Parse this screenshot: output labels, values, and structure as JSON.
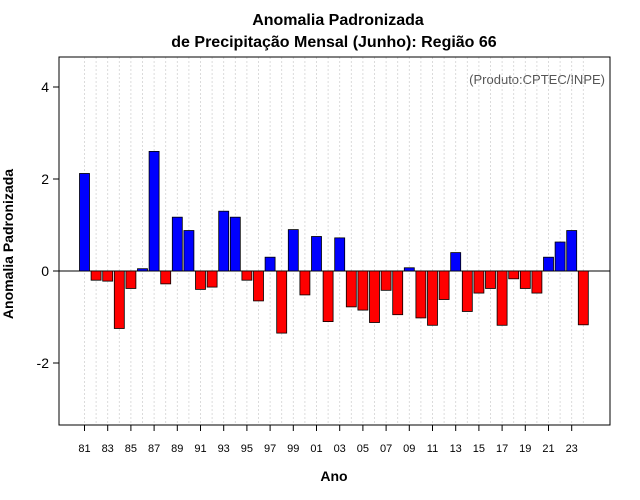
{
  "chart_data": {
    "type": "bar",
    "title": "Anomalia Padronizada",
    "subtitle": "de Precipitação Mensal (Junho): Região 66",
    "xlabel": "Ano",
    "ylabel": "Anomalia Padronizada",
    "credit": "(Produto:CPTEC/INPE)",
    "ylim": [
      -3.4,
      4.6
    ],
    "yticks": [
      "4",
      "2",
      "0",
      "-2"
    ],
    "ytick_values": [
      4,
      2,
      0,
      -2
    ],
    "xtick_labels": [
      "81",
      "83",
      "85",
      "87",
      "89",
      "91",
      "93",
      "95",
      "97",
      "99",
      "01",
      "03",
      "05",
      "07",
      "09",
      "11",
      "13",
      "15",
      "17",
      "19",
      "21",
      "23"
    ],
    "categories": [
      "1981",
      "1982",
      "1983",
      "1984",
      "1985",
      "1986",
      "1987",
      "1988",
      "1989",
      "1990",
      "1991",
      "1992",
      "1993",
      "1994",
      "1995",
      "1996",
      "1997",
      "1998",
      "1999",
      "2000",
      "2001",
      "2002",
      "2003",
      "2004",
      "2005",
      "2006",
      "2007",
      "2008",
      "2009",
      "2010",
      "2011",
      "2012",
      "2013",
      "2014",
      "2015",
      "2016",
      "2017",
      "2018",
      "2019",
      "2020",
      "2021",
      "2022",
      "2023",
      "2024"
    ],
    "values": [
      2.12,
      -0.2,
      -0.22,
      -1.25,
      -0.38,
      0.05,
      2.6,
      -0.28,
      1.17,
      0.88,
      -0.4,
      -0.35,
      1.3,
      1.17,
      -0.2,
      -0.65,
      0.3,
      -1.35,
      0.9,
      -0.52,
      0.75,
      -1.1,
      0.72,
      -0.78,
      -0.85,
      -1.12,
      -0.42,
      -0.95,
      0.07,
      -1.02,
      -1.18,
      -0.62,
      0.4,
      -0.88,
      -0.48,
      -0.38,
      -1.18,
      -0.17,
      -0.38,
      -0.48,
      0.3,
      0.63,
      0.88,
      -1.17
    ],
    "grid": true,
    "colors": {
      "positive": "#0000ff",
      "negative": "#ff0000",
      "grid": "#d3d3d3",
      "axis": "#000000"
    }
  }
}
